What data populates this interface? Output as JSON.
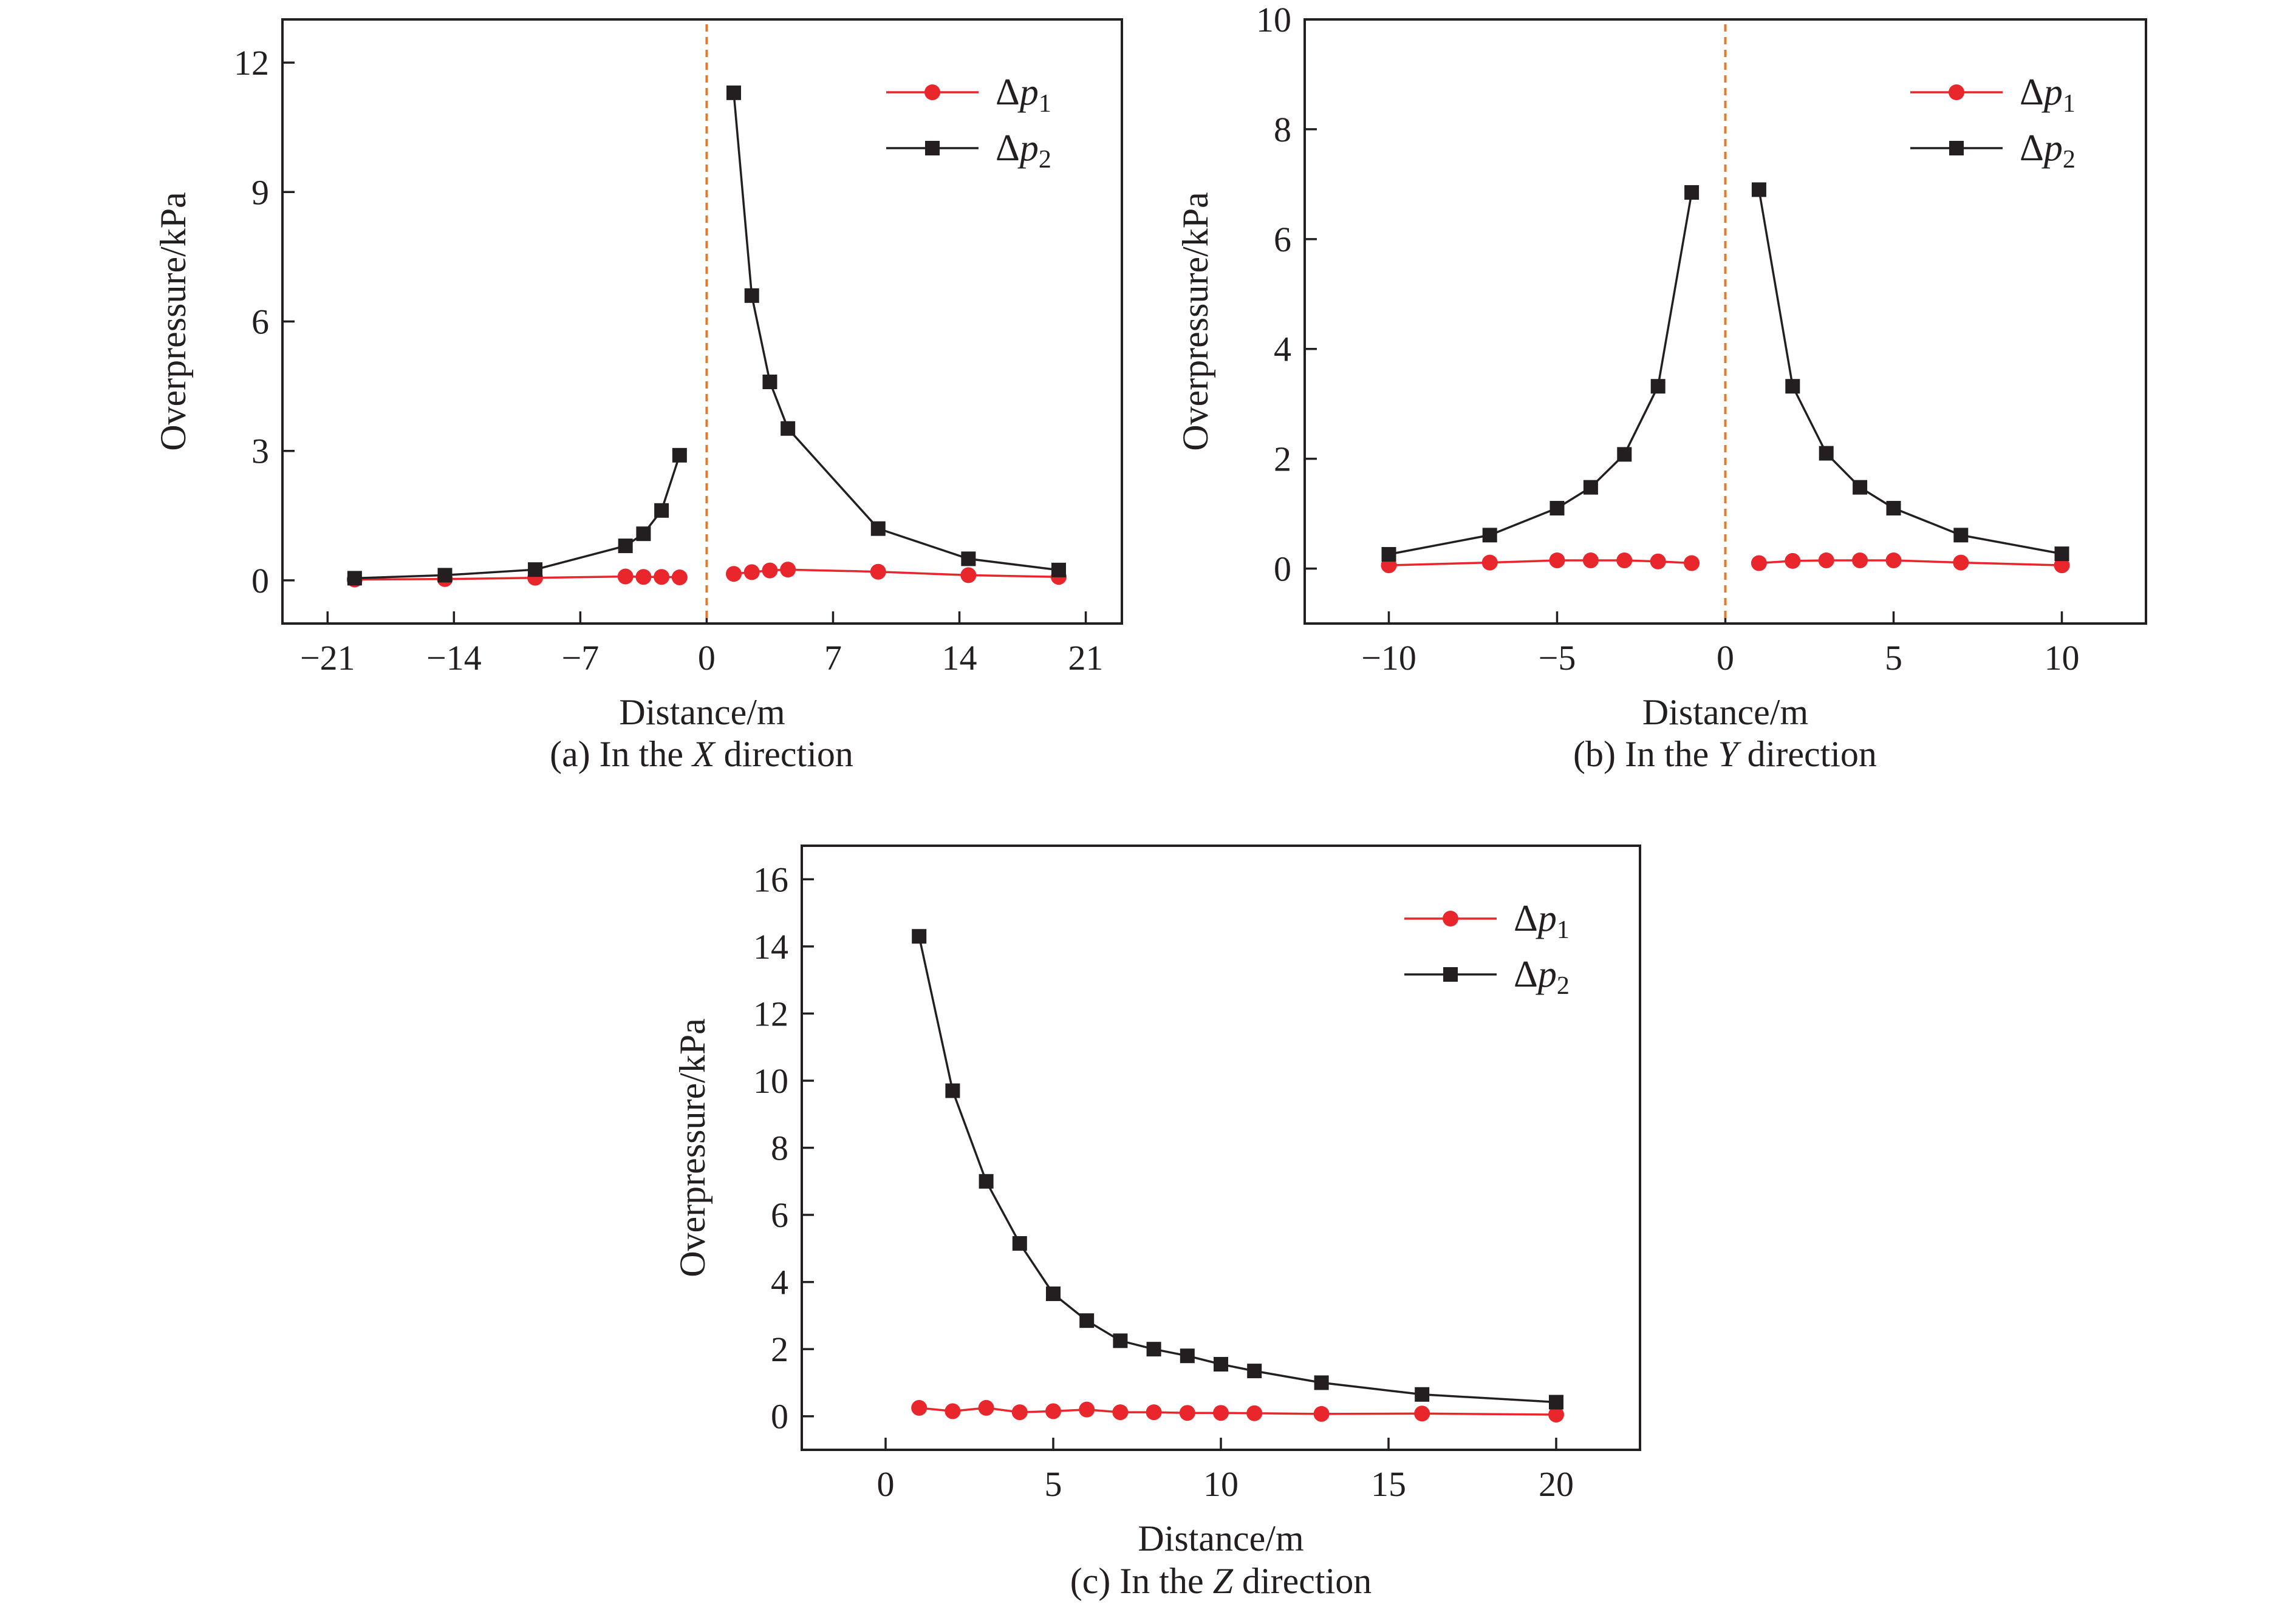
{
  "colors": {
    "series_p1": "#e8262c",
    "series_p2": "#231f20",
    "divider": "#e07b2e"
  },
  "chart_data": [
    {
      "type": "line",
      "caption": {
        "prefix": "(a) In the ",
        "axis": "X",
        "suffix": " direction"
      },
      "xlabel": "Distance/m",
      "ylabel": "Overpressure/kPa",
      "xlim": [
        -23.5,
        23
      ],
      "ylim": [
        -1,
        13
      ],
      "xticks": [
        -21,
        -14,
        -7,
        0,
        7,
        14,
        21
      ],
      "yticks": [
        0,
        3,
        6,
        9,
        12
      ],
      "divider_x": 0,
      "legend_position": "top-right",
      "series": [
        {
          "name": "Δp1",
          "legend": {
            "symbol": "Δ",
            "var": "p",
            "sub": "1"
          },
          "marker": "circle",
          "segments": [
            {
              "x": [
                -19.5,
                -14.5,
                -9.5,
                -4.5,
                -3.5,
                -2.5,
                -1.5
              ],
              "y": [
                0.02,
                0.03,
                0.06,
                0.09,
                0.08,
                0.08,
                0.07
              ]
            },
            {
              "x": [
                1.5,
                2.5,
                3.5,
                4.5,
                9.5,
                14.5,
                19.5
              ],
              "y": [
                0.15,
                0.19,
                0.23,
                0.25,
                0.2,
                0.12,
                0.08
              ]
            }
          ]
        },
        {
          "name": "Δp2",
          "legend": {
            "symbol": "Δ",
            "var": "p",
            "sub": "2"
          },
          "marker": "square",
          "segments": [
            {
              "x": [
                -19.5,
                -14.5,
                -9.5,
                -4.5,
                -3.5,
                -2.5,
                -1.5
              ],
              "y": [
                0.05,
                0.12,
                0.25,
                0.8,
                1.08,
                1.62,
                2.9
              ]
            },
            {
              "x": [
                1.5,
                2.5,
                3.5,
                4.5,
                9.5,
                14.5,
                19.5
              ],
              "y": [
                11.3,
                6.6,
                4.6,
                3.52,
                1.2,
                0.5,
                0.24
              ]
            }
          ]
        }
      ]
    },
    {
      "type": "line",
      "caption": {
        "prefix": "(b) In the ",
        "axis": "Y",
        "suffix": " direction"
      },
      "xlabel": "Distance/m",
      "ylabel": "Overpressure/kPa",
      "xlim": [
        -12.5,
        12.5
      ],
      "ylim": [
        -1,
        10
      ],
      "xticks": [
        -10,
        -5,
        0,
        5,
        10
      ],
      "yticks": [
        0,
        2,
        4,
        6,
        8,
        10
      ],
      "divider_x": 0,
      "legend_position": "top-right",
      "series": [
        {
          "name": "Δp1",
          "legend": {
            "symbol": "Δ",
            "var": "p",
            "sub": "1"
          },
          "marker": "circle",
          "segments": [
            {
              "x": [
                -10,
                -7,
                -5,
                -4,
                -3,
                -2,
                -1
              ],
              "y": [
                0.06,
                0.11,
                0.15,
                0.15,
                0.15,
                0.13,
                0.1
              ]
            },
            {
              "x": [
                1,
                2,
                3,
                4,
                5,
                7,
                10
              ],
              "y": [
                0.1,
                0.14,
                0.15,
                0.15,
                0.15,
                0.11,
                0.06
              ]
            }
          ]
        },
        {
          "name": "Δp2",
          "legend": {
            "symbol": "Δ",
            "var": "p",
            "sub": "2"
          },
          "marker": "square",
          "segments": [
            {
              "x": [
                -10,
                -7,
                -5,
                -4,
                -3,
                -2,
                -1
              ],
              "y": [
                0.26,
                0.61,
                1.1,
                1.48,
                2.08,
                3.32,
                6.85
              ]
            },
            {
              "x": [
                1,
                2,
                3,
                4,
                5,
                7,
                10
              ],
              "y": [
                6.9,
                3.32,
                2.1,
                1.48,
                1.1,
                0.61,
                0.27
              ]
            }
          ]
        }
      ]
    },
    {
      "type": "line",
      "caption": {
        "prefix": "(c) In the ",
        "axis": "Z",
        "suffix": " direction"
      },
      "xlabel": "Distance/m",
      "ylabel": "Overpressure/kPa",
      "xlim": [
        -2.5,
        22.5
      ],
      "ylim": [
        -1,
        17
      ],
      "xticks": [
        0,
        5,
        10,
        15,
        20
      ],
      "yticks": [
        0,
        2,
        4,
        6,
        8,
        10,
        12,
        14,
        16
      ],
      "divider_x": null,
      "legend_position": "top-right",
      "series": [
        {
          "name": "Δp1",
          "legend": {
            "symbol": "Δ",
            "var": "p",
            "sub": "1"
          },
          "marker": "circle",
          "segments": [
            {
              "x": [
                1,
                2,
                3,
                4,
                5,
                6,
                7,
                8,
                9,
                10,
                11,
                13,
                16,
                20
              ],
              "y": [
                0.25,
                0.15,
                0.25,
                0.12,
                0.15,
                0.2,
                0.12,
                0.12,
                0.1,
                0.1,
                0.09,
                0.07,
                0.08,
                0.05
              ]
            }
          ]
        },
        {
          "name": "Δp2",
          "legend": {
            "symbol": "Δ",
            "var": "p",
            "sub": "2"
          },
          "marker": "square",
          "segments": [
            {
              "x": [
                1,
                2,
                3,
                4,
                5,
                6,
                7,
                8,
                9,
                10,
                11,
                13,
                16,
                20
              ],
              "y": [
                14.3,
                9.7,
                7.0,
                5.15,
                3.65,
                2.85,
                2.25,
                2.0,
                1.8,
                1.55,
                1.35,
                1.0,
                0.65,
                0.42
              ]
            }
          ]
        }
      ]
    }
  ]
}
